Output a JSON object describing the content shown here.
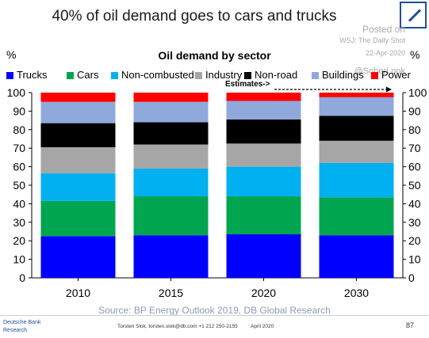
{
  "headline": "40% of oil demand goes to cars and trucks",
  "watermark": {
    "posted": "Posted on",
    "source": "WSJ: The Daily Shot",
    "date": "22-Apr-2020",
    "handle": "@SoberLook"
  },
  "unit_left": "%",
  "unit_right": "%",
  "source_note": "Source: BP Energy Outlook 2019, DB Global Research",
  "footer": {
    "brand_line1": "Deutsche Bank",
    "brand_line2": "Research",
    "author": "Torsten Slok, torsten.slok@db.com  +1 212 250-2155",
    "date": "April 2020",
    "page": "87"
  },
  "chart_data": {
    "type": "bar",
    "stacked": true,
    "title": "Oil demand by sector",
    "xlabel": "",
    "ylabel": "%",
    "ylim": [
      0,
      100
    ],
    "yticks": [
      0,
      10,
      20,
      30,
      40,
      50,
      60,
      70,
      80,
      90,
      100
    ],
    "grid": false,
    "legend_position": "top",
    "categories": [
      "2010",
      "2015",
      "2020",
      "2030"
    ],
    "annotation": "Estimates->",
    "series": [
      {
        "name": "Trucks",
        "color": "#0000ff",
        "values": [
          22.5,
          23,
          23.5,
          23
        ]
      },
      {
        "name": "Cars",
        "color": "#00a64f",
        "values": [
          19,
          21,
          20.5,
          20.5
        ]
      },
      {
        "name": "Non-combusted",
        "color": "#00b0f0",
        "values": [
          15,
          15,
          16,
          18.5
        ]
      },
      {
        "name": "Industry",
        "color": "#a6a6a6",
        "values": [
          14,
          13,
          12.5,
          12
        ]
      },
      {
        "name": "Non-road",
        "color": "#000000",
        "values": [
          13,
          12,
          13,
          13.5
        ]
      },
      {
        "name": "Buildings",
        "color": "#8fa9dc",
        "values": [
          11.5,
          11,
          10,
          10
        ]
      },
      {
        "name": "Power",
        "color": "#ff0000",
        "values": [
          5,
          5,
          4.5,
          2.5
        ]
      }
    ]
  }
}
